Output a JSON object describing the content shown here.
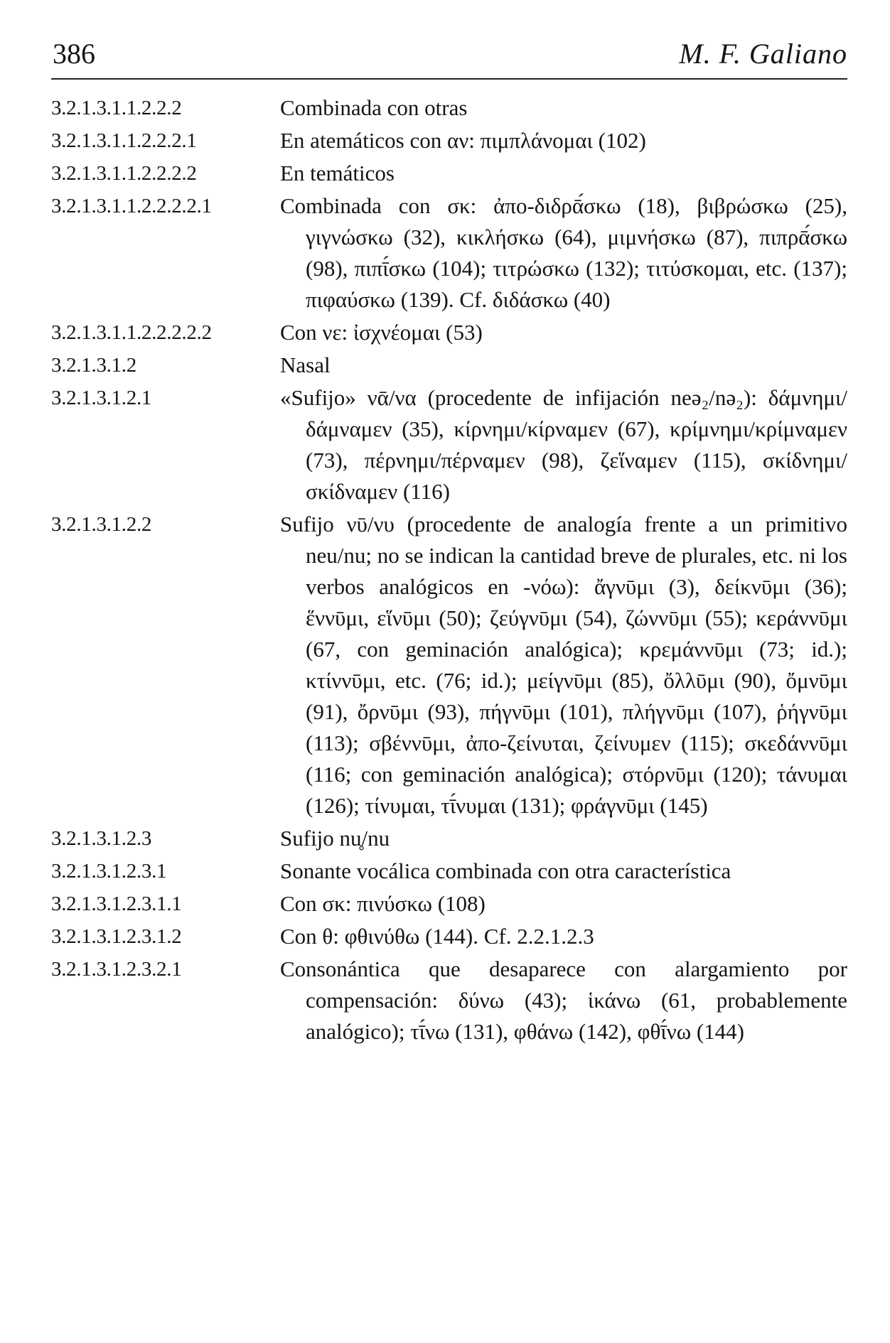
{
  "header": {
    "page_number": "386",
    "running_head": "M. F. Galiano"
  },
  "entries": [
    {
      "num": "3.2.1.3.1.1.2.2.2",
      "text": "Combinada con otras"
    },
    {
      "num": "3.2.1.3.1.1.2.2.2.1",
      "text": "En atemáticos con αν: πιμπλάνομαι (102)"
    },
    {
      "num": "3.2.1.3.1.1.2.2.2.2",
      "text": "En temáticos"
    },
    {
      "num": "3.2.1.3.1.1.2.2.2.2.1",
      "text": "Combinada con σκ: ἀπο-διδρᾱ́σκω (18), βιβρώσκω (25), γιγνώσκω (32), κικλήσκω (64), μιμνήσκω (87), πιπρᾱ́σκω (98), πιπῑ́σκω (104); τιτρώσκω (132); τιτύσκομαι, etc. (137); πιφαύσκω (139). Cf. διδάσκω (40)"
    },
    {
      "num": "3.2.1.3.1.1.2.2.2.2.2",
      "text": "Con νε: ἰσχνέομαι (53)"
    },
    {
      "num": "3.2.1.3.1.2",
      "text": "Nasal"
    },
    {
      "num": "3.2.1.3.1.2.1",
      "text": "«Sufijo» νᾱ/να (procedente de infijación neə₂/nə₂): δάμνημι/δάμναμεν (35), κίρνημι/κίρναμεν (67), κρίμνημι/κρίμναμεν (73), πέρνημι/πέρναμεν (98), ζεἵναμεν (115), σκίδνημι/σκίδναμεν (116)"
    },
    {
      "num": "3.2.1.3.1.2.2",
      "text": "Sufijo νῡ/νυ (procedente de analogía frente a un primitivo neu/nu; no se indican la cantidad breve de plurales, etc. ni los verbos analógicos en -νόω): ἄγνῡμι (3), δείκνῡμι (36); ἕννῡμι, εἵνῡμι (50); ζεύγνῡμι (54), ζώννῡμι (55); κεράννῡμι (67, con geminación analógica); κρεμάννῡμι (73; id.); κτίννῡμι, etc. (76; id.); μείγνῡμι (85), ὄλλῡμι (90), ὄμνῡμι (91), ὄρνῡμι (93), πήγνῡμι (101), πλήγνῡμι (107), ῥήγνῡμι (113); σβέννῡμι, ἀπο-ζείνυται, ζείνυμεν (115); σκεδάννῡμι (116; con geminación analógica); στόρνῡμι (120); τάνυμαι (126); τίνυμαι, τῑ́νυμαι (131); φράγνῡμι (145)"
    },
    {
      "num": "3.2.1.3.1.2.3",
      "text": "Sufijo nu̥/nu"
    },
    {
      "num": "3.2.1.3.1.2.3.1",
      "text": "Sonante vocálica combinada con otra característica"
    },
    {
      "num": "3.2.1.3.1.2.3.1.1",
      "text": "Con σκ: πινύσκω (108)"
    },
    {
      "num": "3.2.1.3.1.2.3.1.2",
      "text": "Con θ: φθινύθω (144). Cf. 2.2.1.2.3"
    },
    {
      "num": "3.2.1.3.1.2.3.2.1",
      "text": "Consonántica que desaparece con alargamiento por compensación: δύνω (43); ἱκάνω (61, probablemente analógico); τῑ́νω (131), φθάνω (142), φθῑ́νω (144)"
    }
  ]
}
